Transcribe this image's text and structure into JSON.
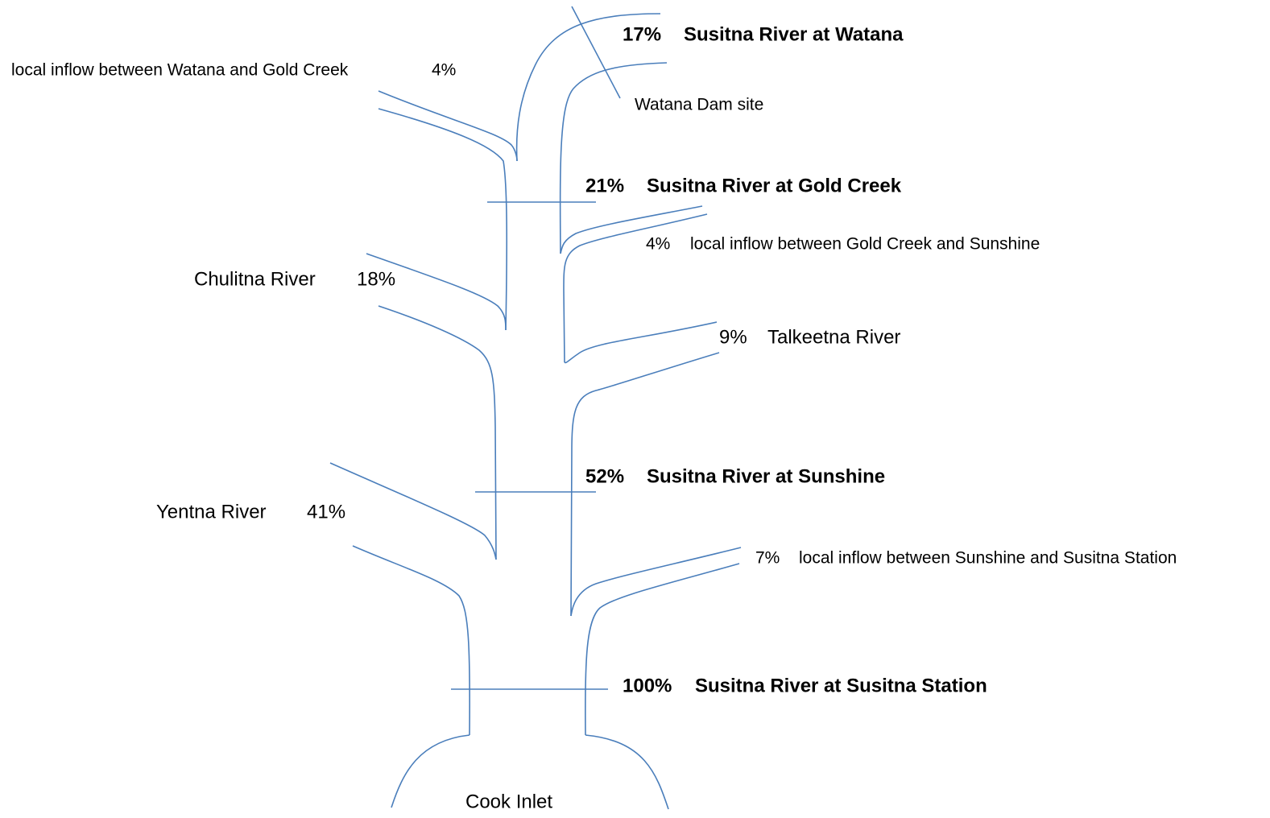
{
  "gauges": [
    {
      "percent": "17%",
      "name": "Susitna River at Watana"
    },
    {
      "percent": "21%",
      "name": "Susitna River at Gold Creek"
    },
    {
      "percent": "52%",
      "name": "Susitna River at Sunshine"
    },
    {
      "percent": "100%",
      "name": "Susitna River at Susitna Station"
    }
  ],
  "tributaries": [
    {
      "name": "local inflow between Watana and Gold Creek",
      "percent": "4%"
    },
    {
      "name": "local inflow between Gold Creek and Sunshine",
      "percent": "4%"
    },
    {
      "name": "Chulitna River",
      "percent": "18%"
    },
    {
      "name": "Talkeetna River",
      "percent": "9%"
    },
    {
      "name": "Yentna River",
      "percent": "41%"
    },
    {
      "name": "local inflow between Sunshine and Susitna Station",
      "percent": "7%"
    }
  ],
  "dam_site": "Watana Dam site",
  "mouth": "Cook Inlet"
}
